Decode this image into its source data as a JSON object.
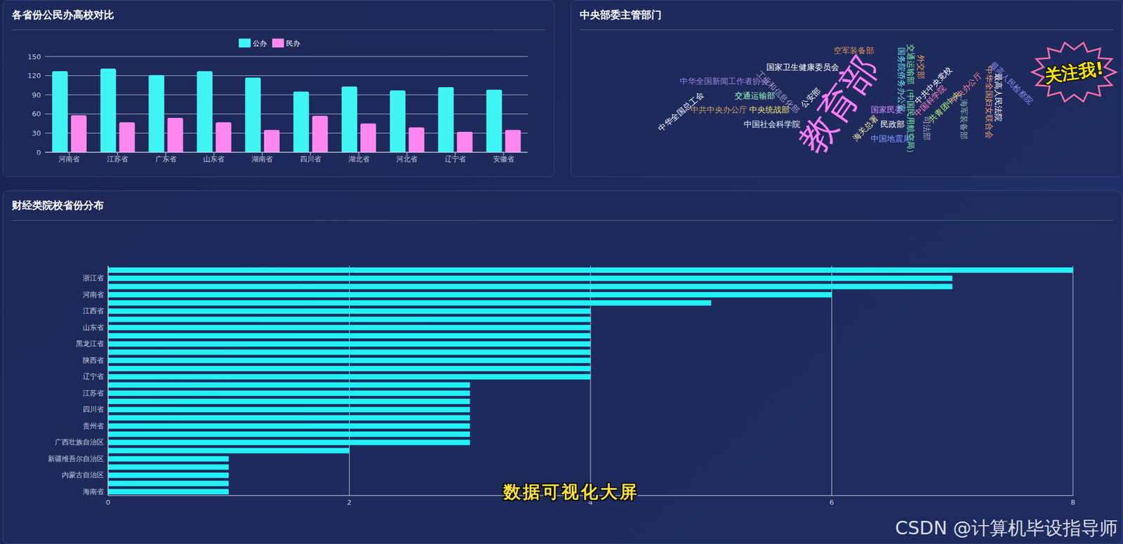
{
  "chart_data": [
    {
      "type": "bar",
      "title": "各省份公民办高校对比",
      "categories": [
        "河南省",
        "江苏省",
        "广东省",
        "山东省",
        "湖南省",
        "四川省",
        "湖北省",
        "河北省",
        "辽宁省",
        "安徽省"
      ],
      "series": [
        {
          "name": "公办",
          "color": "#40f4f4",
          "values": [
            127,
            131,
            121,
            127,
            117,
            95,
            103,
            97,
            102,
            98
          ]
        },
        {
          "name": "民办",
          "color": "#ff88f0",
          "values": [
            58,
            47,
            54,
            47,
            35,
            57,
            45,
            39,
            32,
            35
          ]
        }
      ],
      "ylim": [
        0,
        150
      ],
      "yticks": [
        0,
        30,
        60,
        90,
        120,
        150
      ],
      "grid": true,
      "legend": "top"
    },
    {
      "type": "word_cloud",
      "title": "中央部委主管部门",
      "words": [
        "中华全国总工会",
        "中华全国新闻工作者协会",
        "中共中央办公厅",
        "国家卫生健康委员会",
        "交通运输部",
        "中央统战部",
        "中国社会科学院",
        "工业和信息化部",
        "公安部",
        "空军装备部",
        "教育部",
        "海关总署",
        "国家民委",
        "民政部",
        "中国地震局",
        "交通运输部（中国民用航空局）",
        "国务院侨务办公室",
        "外交部",
        "中共中央党校",
        "中国科学院",
        "共青团中央",
        "司法部",
        "中央办公厅",
        "海军装备部",
        "中华全国妇女联合会",
        "最高人民法院",
        "最高人民检察院"
      ],
      "weights": [
        1,
        1,
        1,
        1,
        1,
        1,
        1,
        1,
        1,
        1,
        32,
        1,
        1,
        1,
        1,
        1,
        1,
        1,
        1,
        1,
        1,
        1,
        1,
        1,
        1,
        1,
        1
      ],
      "colors": [
        "#ffffff",
        "#9b7fd4",
        "#c99a63",
        "#ffffff",
        "#9df5c0",
        "#e8e07a",
        "#e6f0ff",
        "#a89cc8",
        "#ffffff",
        "#d9905a",
        "#ff7df5",
        "#f5e6a0",
        "#d88cff",
        "#ffffff",
        "#7f9dff",
        "#7ff0a8",
        "#6fe3e8",
        "#e8a060",
        "#ffffff",
        "#ff86c8",
        "#b8f07a",
        "#a8a8b8",
        "#f08a9a",
        "#8fb8a8",
        "#f0a070",
        "#ffffff",
        "#8c8ce8"
      ],
      "annotations": [
        "关注我!"
      ]
    },
    {
      "type": "bar",
      "orientation": "horizontal",
      "title": "财经类院校省份分布",
      "categories": [
        null,
        "浙江省",
        null,
        "河南省",
        null,
        "江西省",
        null,
        "山东省",
        null,
        "黑龙江省",
        null,
        "陕西省",
        null,
        "辽宁省",
        null,
        "江苏省",
        null,
        "四川省",
        null,
        "贵州省",
        null,
        "广西壮族自治区",
        null,
        "新疆维吾尔自治区",
        null,
        "内蒙古自治区",
        null,
        "海南省"
      ],
      "values": [
        8,
        7,
        7,
        6,
        5,
        4,
        4,
        4,
        4,
        4,
        4,
        4,
        4,
        4,
        3,
        3,
        3,
        3,
        3,
        3,
        3,
        3,
        2,
        1,
        1,
        1,
        1,
        1
      ],
      "color": "#22f2f5",
      "xlim": [
        0,
        8
      ],
      "xticks": [
        0,
        2,
        4,
        6,
        8
      ],
      "grid": true,
      "annotations": [
        "数据可视化大屏",
        "CSDN @计算机毕设指导师"
      ]
    }
  ]
}
